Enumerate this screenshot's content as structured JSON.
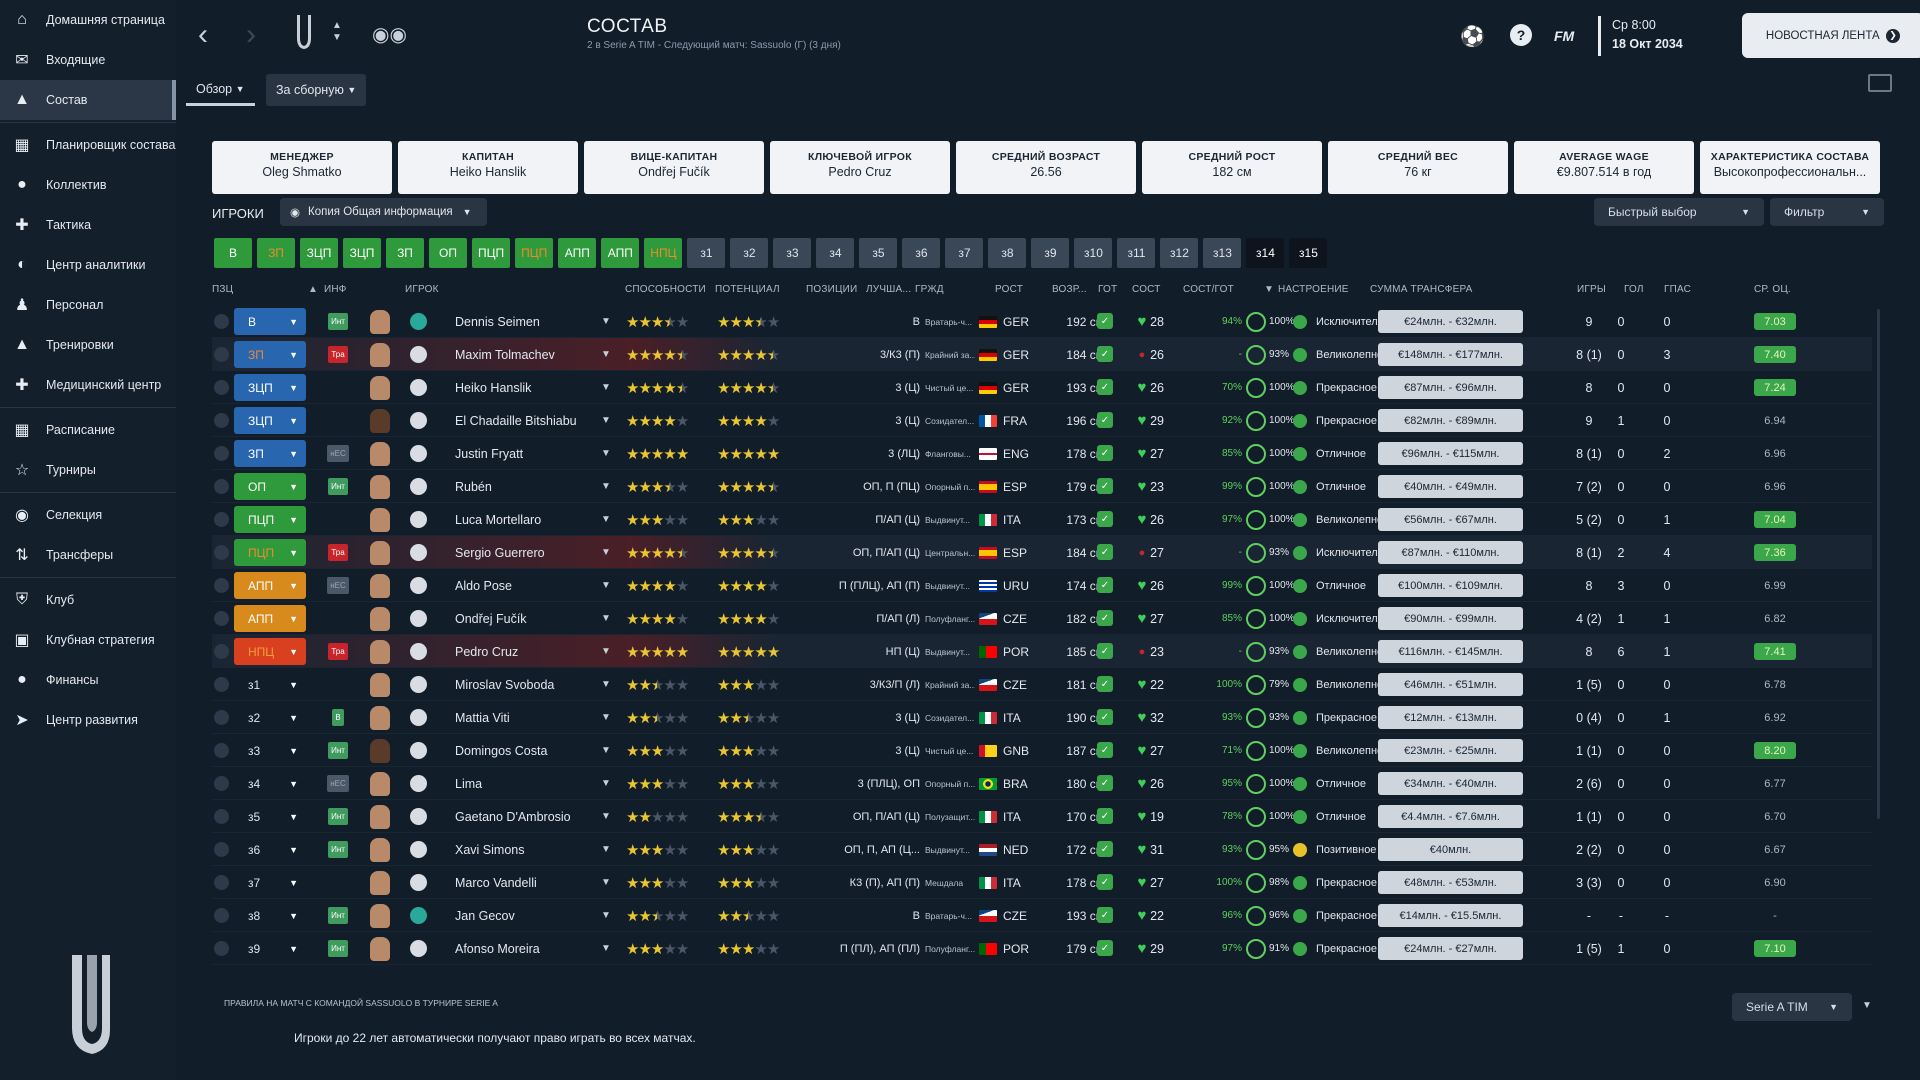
{
  "sidebar": {
    "items": [
      {
        "label": "Домашняя страница",
        "icon": "home-icon"
      },
      {
        "label": "Входящие",
        "icon": "envelope-icon"
      },
      {
        "label": "Состав",
        "icon": "shirt-icon",
        "active": true
      },
      {
        "label": "Планировщик состава",
        "icon": "clipboard-icon"
      },
      {
        "label": "Коллектив",
        "icon": "team-icon"
      },
      {
        "label": "Тактика",
        "icon": "tactics-icon"
      },
      {
        "label": "Центр аналитики",
        "icon": "analytics-icon"
      },
      {
        "label": "Персонал",
        "icon": "staff-icon"
      },
      {
        "label": "Тренировки",
        "icon": "cone-icon"
      },
      {
        "label": "Медицинский центр",
        "icon": "medical-icon"
      },
      {
        "label": "Расписание",
        "icon": "calendar-icon"
      },
      {
        "label": "Турниры",
        "icon": "trophy-icon"
      },
      {
        "label": "Селекция",
        "icon": "binoculars-icon"
      },
      {
        "label": "Трансферы",
        "icon": "transfer-icon"
      },
      {
        "label": "Клуб",
        "icon": "shield-icon"
      },
      {
        "label": "Клубная стратегия",
        "icon": "strategy-icon"
      },
      {
        "label": "Финансы",
        "icon": "finance-icon"
      },
      {
        "label": "Центр развития",
        "icon": "development-icon"
      }
    ]
  },
  "header": {
    "title": "СОСТАВ",
    "subtitle": "2 в Serie A TIM - Следующий матч: Sassuolo (Г) (3 дня)",
    "tabs": [
      {
        "label": "Обзор"
      },
      {
        "label": "За сборную"
      }
    ],
    "date_line1": "Ср 8:00",
    "date_line2": "18 Окт 2034",
    "news_button": "НОВОСТНАЯ ЛЕНТА",
    "fm_label": "FM"
  },
  "cards": [
    {
      "title": "МЕНЕДЖЕР",
      "value": "Oleg Shmatko"
    },
    {
      "title": "КАПИТАН",
      "value": "Heiko Hanslik"
    },
    {
      "title": "ВИЦЕ-КАПИТАН",
      "value": "Ondřej Fučík"
    },
    {
      "title": "КЛЮЧЕВОЙ ИГРОК",
      "value": "Pedro Cruz"
    },
    {
      "title": "СРЕДНИЙ ВОЗРАСТ",
      "value": "26.56"
    },
    {
      "title": "СРЕДНИЙ РОСТ",
      "value": "182 см"
    },
    {
      "title": "СРЕДНИЙ ВЕС",
      "value": "76 кг"
    },
    {
      "title": "AVERAGE WAGE",
      "value": "€9.807.514 в год"
    },
    {
      "title": "ХАРАКТЕРИСТИКА СОСТАВА",
      "value": "Высокопрофессиональн..."
    }
  ],
  "players_bar": {
    "label": "ИГРОКИ",
    "view": "Копия Общая информация",
    "quick_select": "Быстрый выбор",
    "filter": "Фильтр"
  },
  "chips": [
    {
      "label": "В",
      "style": "g"
    },
    {
      "label": "ЗП",
      "style": "go"
    },
    {
      "label": "ЗЦП",
      "style": "g"
    },
    {
      "label": "ЗЦП",
      "style": "g"
    },
    {
      "label": "ЗП",
      "style": "g"
    },
    {
      "label": "ОП",
      "style": "g"
    },
    {
      "label": "ПЦП",
      "style": "g"
    },
    {
      "label": "ПЦП",
      "style": "go"
    },
    {
      "label": "АПП",
      "style": "g"
    },
    {
      "label": "АПП",
      "style": "g"
    },
    {
      "label": "НПЦ",
      "style": "go"
    },
    {
      "label": "з1",
      "style": "s"
    },
    {
      "label": "з2",
      "style": "s"
    },
    {
      "label": "з3",
      "style": "s"
    },
    {
      "label": "з4",
      "style": "s"
    },
    {
      "label": "з5",
      "style": "s"
    },
    {
      "label": "з6",
      "style": "s"
    },
    {
      "label": "з7",
      "style": "s"
    },
    {
      "label": "з8",
      "style": "s"
    },
    {
      "label": "з9",
      "style": "s"
    },
    {
      "label": "з10",
      "style": "s"
    },
    {
      "label": "з11",
      "style": "s"
    },
    {
      "label": "з12",
      "style": "s"
    },
    {
      "label": "з13",
      "style": "s"
    },
    {
      "label": "з14",
      "style": "k"
    },
    {
      "label": "з15",
      "style": "k"
    }
  ],
  "table": {
    "headers": {
      "pos": "ПЗЦ",
      "info": "ИНФ",
      "player": "ИГРОК",
      "ability": "СПОСОБНОСТИ",
      "potential": "ПОТЕНЦИАЛ",
      "positions": "ПОЗИЦИИ",
      "best_role": "ЛУЧША...",
      "nat": "ГРЖД",
      "height": "РОСТ",
      "age": "ВОЗР...",
      "ready": "ГОТ",
      "cond": "СОСТ",
      "fitness": "СОСТ/ГОТ",
      "mood": "НАСТРОЕНИЕ",
      "fee": "СУММА ТРАНСФЕРА",
      "games": "ИГРЫ",
      "goals": "ГОЛ",
      "assists": "ГПАС",
      "rating": "СР. ОЦ."
    },
    "rows": [
      {
        "pos": "В",
        "pc": "p0",
        "info": "Инт",
        "ic": "green",
        "kit": "gk",
        "name": "Dennis Seimen",
        "ab": 3.5,
        "pot": 3.5,
        "positions": "В",
        "role": "Вратарь-ч...",
        "nat": "GER",
        "flag": "ger",
        "height": "192 см",
        "age": "28",
        "fit": "94%",
        "fit2": "100%",
        "mood": "Исключительное",
        "fee": "€24млн. - €32млн.",
        "games": "9",
        "goals": "0",
        "assists": "0",
        "rating": "7.03",
        "rg": true
      },
      {
        "pos": "ЗП",
        "pc": "p5",
        "info": "Тра",
        "ic": "red",
        "kit": "w",
        "name": "Maxim Tolmachev",
        "ab": 4.5,
        "pot": 4.5,
        "positions": "3/К3 (П)",
        "role": "Крайний за...",
        "nat": "GER",
        "flag": "ger",
        "height": "184 см",
        "age": "26",
        "fit": "-",
        "fit2": "93%",
        "mood": "Великолепное",
        "fee": "€148млн. - €177млн.",
        "games": "8 (1)",
        "goals": "0",
        "assists": "3",
        "rating": "7.40",
        "rg": true,
        "red": true
      },
      {
        "pos": "ЗЦП",
        "pc": "p0",
        "info": "",
        "ic": "",
        "kit": "w",
        "name": "Heiko Hanslik",
        "ab": 4.5,
        "pot": 4.5,
        "positions": "3 (Ц)",
        "role": "Чистый це...",
        "nat": "GER",
        "flag": "ger",
        "height": "193 см",
        "age": "26",
        "fit": "70%",
        "fit2": "100%",
        "mood": "Прекрасное",
        "fee": "€87млн. - €96млн.",
        "games": "8",
        "goals": "0",
        "assists": "0",
        "rating": "7.24",
        "rg": true
      },
      {
        "pos": "ЗЦП",
        "pc": "p0",
        "info": "",
        "ic": "",
        "kit": "w",
        "name": "El Chadaille Bitshiabu",
        "ab": 4,
        "pot": 4,
        "positions": "3 (Ц)",
        "role": "Созидател...",
        "nat": "FRA",
        "flag": "fra",
        "height": "196 см",
        "age": "29",
        "fit": "92%",
        "fit2": "100%",
        "mood": "Прекрасное",
        "fee": "€82млн. - €89млн.",
        "games": "9",
        "goals": "1",
        "assists": "0",
        "rating": "6.94",
        "rg": false,
        "dark": true
      },
      {
        "pos": "ЗП",
        "pc": "p0",
        "info": "нЕС",
        "ic": "grey",
        "kit": "w",
        "name": "Justin Fryatt",
        "ab": 5,
        "pot": 5,
        "positions": "3 (ЛЦ)",
        "role": "Фланговы...",
        "nat": "ENG",
        "flag": "eng",
        "height": "178 см",
        "age": "27",
        "fit": "85%",
        "fit2": "100%",
        "mood": "Отличное",
        "fee": "€96млн. - €115млн.",
        "games": "8 (1)",
        "goals": "0",
        "assists": "2",
        "rating": "6.96",
        "rg": false
      },
      {
        "pos": "ОП",
        "pc": "p1",
        "info": "Инт",
        "ic": "green",
        "kit": "w",
        "name": "Rubén",
        "ab": 3.5,
        "pot": 4.5,
        "positions": "ОП, П (ПЦ)",
        "role": "Опорный п...",
        "nat": "ESP",
        "flag": "esp",
        "height": "179 см",
        "age": "23",
        "fit": "99%",
        "fit2": "100%",
        "mood": "Отличное",
        "fee": "€40млн. - €49млн.",
        "games": "7 (2)",
        "goals": "0",
        "assists": "0",
        "rating": "6.96",
        "rg": false
      },
      {
        "pos": "ПЦП",
        "pc": "p1",
        "info": "",
        "ic": "",
        "kit": "w",
        "name": "Luca Mortellaro",
        "ab": 3,
        "pot": 3,
        "positions": "П/АП (Ц)",
        "role": "Выдвинут...",
        "nat": "ITA",
        "flag": "ita",
        "height": "173 см",
        "age": "26",
        "fit": "97%",
        "fit2": "100%",
        "mood": "Великолепное",
        "fee": "€56млн. - €67млн.",
        "games": "5 (2)",
        "goals": "0",
        "assists": "1",
        "rating": "7.04",
        "rg": true
      },
      {
        "pos": "ПЦП",
        "pc": "p3",
        "info": "Тра",
        "ic": "red",
        "kit": "w",
        "name": "Sergio Guerrero",
        "ab": 4.5,
        "pot": 4.5,
        "positions": "ОП, П/АП (Ц)",
        "role": "Центральн...",
        "nat": "ESP",
        "flag": "esp",
        "height": "184 см",
        "age": "27",
        "fit": "-",
        "fit2": "93%",
        "mood": "Исключительное",
        "fee": "€87млн. - €110млн.",
        "games": "8 (1)",
        "goals": "2",
        "assists": "4",
        "rating": "7.36",
        "rg": true,
        "red": true
      },
      {
        "pos": "АПП",
        "pc": "p2",
        "info": "нЕС",
        "ic": "grey",
        "kit": "w",
        "name": "Aldo Pose",
        "ab": 4,
        "pot": 4,
        "positions": "П (ПЛЦ), АП (П)",
        "role": "Выдвинут...",
        "nat": "URU",
        "flag": "uru",
        "height": "174 см",
        "age": "26",
        "fit": "99%",
        "fit2": "100%",
        "mood": "Отличное",
        "fee": "€100млн. - €109млн.",
        "games": "8",
        "goals": "3",
        "assists": "0",
        "rating": "6.99",
        "rg": false
      },
      {
        "pos": "АПП",
        "pc": "p2",
        "info": "",
        "ic": "",
        "kit": "w",
        "name": "Ondřej Fučík",
        "ab": 4,
        "pot": 4,
        "positions": "П/АП (Л)",
        "role": "Полуфланг...",
        "nat": "CZE",
        "flag": "cze",
        "height": "182 см",
        "age": "27",
        "fit": "85%",
        "fit2": "100%",
        "mood": "Исключительное",
        "fee": "€90млн. - €99млн.",
        "games": "4 (2)",
        "goals": "1",
        "assists": "1",
        "rating": "6.82",
        "rg": false
      },
      {
        "pos": "НПЦ",
        "pc": "p4",
        "info": "Тра",
        "ic": "red",
        "kit": "w",
        "name": "Pedro Cruz",
        "ab": 5,
        "pot": 5,
        "positions": "НП (Ц)",
        "role": "Выдвинут...",
        "nat": "POR",
        "flag": "por",
        "height": "185 см",
        "age": "23",
        "fit": "-",
        "fit2": "93%",
        "mood": "Великолепное",
        "fee": "€116млн. - €145млн.",
        "games": "8",
        "goals": "6",
        "assists": "1",
        "rating": "7.41",
        "rg": true,
        "red": true
      },
      {
        "pos": "з1",
        "pc": "p6",
        "info": "",
        "ic": "",
        "kit": "w",
        "name": "Miroslav Svoboda",
        "ab": 2.5,
        "pot": 3,
        "positions": "3/К3/П (Л)",
        "role": "Крайний за...",
        "nat": "CZE",
        "flag": "cze",
        "height": "181 см",
        "age": "22",
        "fit": "100%",
        "fit2": "79%",
        "mood": "Великолепное",
        "fee": "€46млн. - €51млн.",
        "games": "1 (5)",
        "goals": "0",
        "assists": "0",
        "rating": "6.78",
        "rg": false
      },
      {
        "pos": "з2",
        "pc": "p6",
        "info": "В",
        "ic": "green",
        "kit": "w",
        "name": "Mattia Viti",
        "ab": 2.5,
        "pot": 2.5,
        "positions": "3 (Ц)",
        "role": "Созидател...",
        "nat": "ITA",
        "flag": "ita",
        "height": "190 см",
        "age": "32",
        "fit": "93%",
        "fit2": "93%",
        "mood": "Прекрасное",
        "fee": "€12млн. - €13млн.",
        "games": "0 (4)",
        "goals": "0",
        "assists": "1",
        "rating": "6.92",
        "rg": false
      },
      {
        "pos": "з3",
        "pc": "p6",
        "info": "Инт",
        "ic": "green",
        "kit": "w",
        "name": "Domingos Costa",
        "ab": 3,
        "pot": 3,
        "positions": "3 (Ц)",
        "role": "Чистый це...",
        "nat": "GNB",
        "flag": "gnb",
        "height": "187 см",
        "age": "27",
        "fit": "71%",
        "fit2": "100%",
        "mood": "Великолепное",
        "fee": "€23млн. - €25млн.",
        "games": "1 (1)",
        "goals": "0",
        "assists": "0",
        "rating": "8.20",
        "rg": true,
        "dark": true
      },
      {
        "pos": "з4",
        "pc": "p6",
        "info": "нЕС",
        "ic": "grey",
        "kit": "w",
        "name": "Lima",
        "ab": 3,
        "pot": 3,
        "positions": "3 (ПЛЦ), ОП",
        "role": "Опорный п...",
        "nat": "BRA",
        "flag": "bra",
        "height": "180 см",
        "age": "26",
        "fit": "95%",
        "fit2": "100%",
        "mood": "Отличное",
        "fee": "€34млн. - €40млн.",
        "games": "2 (6)",
        "goals": "0",
        "assists": "0",
        "rating": "6.77",
        "rg": false
      },
      {
        "pos": "з5",
        "pc": "p6",
        "info": "Инт",
        "ic": "green",
        "kit": "w",
        "name": "Gaetano D'Ambrosio",
        "ab": 2,
        "pot": 3.5,
        "positions": "ОП, П/АП (Ц)",
        "role": "Полузащит...",
        "nat": "ITA",
        "flag": "ita",
        "height": "170 см",
        "age": "19",
        "fit": "78%",
        "fit2": "100%",
        "mood": "Отличное",
        "fee": "€4.4млн. - €7.6млн.",
        "games": "1 (1)",
        "goals": "0",
        "assists": "0",
        "rating": "6.70",
        "rg": false
      },
      {
        "pos": "з6",
        "pc": "p6",
        "info": "Инт",
        "ic": "green",
        "kit": "w",
        "name": "Xavi Simons",
        "ab": 3,
        "pot": 3,
        "positions": "ОП, П, АП (Ц...",
        "role": "Выдвинут...",
        "nat": "NED",
        "flag": "ned",
        "height": "172 см",
        "age": "31",
        "fit": "93%",
        "fit2": "95%",
        "mood": "Позитивное",
        "fee": "€40млн.",
        "games": "2 (2)",
        "goals": "0",
        "assists": "0",
        "rating": "6.67",
        "rg": false,
        "moodY": true
      },
      {
        "pos": "з7",
        "pc": "p6",
        "info": "",
        "ic": "",
        "kit": "w",
        "name": "Marco Vandelli",
        "ab": 3,
        "pot": 3,
        "positions": "К3 (П), АП (П)",
        "role": "Мешдала",
        "nat": "ITA",
        "flag": "ita",
        "height": "178 см",
        "age": "27",
        "fit": "100%",
        "fit2": "98%",
        "mood": "Прекрасное",
        "fee": "€48млн. - €53млн.",
        "games": "3 (3)",
        "goals": "0",
        "assists": "0",
        "rating": "6.90",
        "rg": false
      },
      {
        "pos": "з8",
        "pc": "p6",
        "info": "Инт",
        "ic": "green",
        "kit": "gk",
        "name": "Jan Gecov",
        "ab": 2.5,
        "pot": 2.5,
        "positions": "В",
        "role": "Вратарь-ч...",
        "nat": "CZE",
        "flag": "cze",
        "height": "193 см",
        "age": "22",
        "fit": "96%",
        "fit2": "96%",
        "mood": "Прекрасное",
        "fee": "€14млн. - €15.5млн.",
        "games": "-",
        "goals": "-",
        "assists": "-",
        "rating": "-",
        "rg": false
      },
      {
        "pos": "з9",
        "pc": "p6",
        "info": "Инт",
        "ic": "green",
        "kit": "w",
        "name": "Afonso Moreira",
        "ab": 3,
        "pot": 3,
        "positions": "П (ПЛ), АП (ПЛ)",
        "role": "Полуфланг...",
        "nat": "POR",
        "flag": "por",
        "height": "179 см",
        "age": "29",
        "fit": "97%",
        "fit2": "91%",
        "mood": "Прекрасное",
        "fee": "€24млн. - €27млн.",
        "games": "1 (5)",
        "goals": "1",
        "assists": "0",
        "rating": "7.10",
        "rg": true
      }
    ]
  },
  "footer": {
    "rules_title": "ПРАВИЛА НА МАТЧ С КОМАНДОЙ SASSUOLO В ТУРНИРЕ SERIE A",
    "rules_text": "Игроки до 22 лет автоматически получают право играть во всех матчах.",
    "competition": "Serie A TIM"
  },
  "colors": {
    "accent_green": "#2f9a3c",
    "gk_blue": "#2966b0",
    "status_red": "#c7242b",
    "star": "#e9c632"
  }
}
